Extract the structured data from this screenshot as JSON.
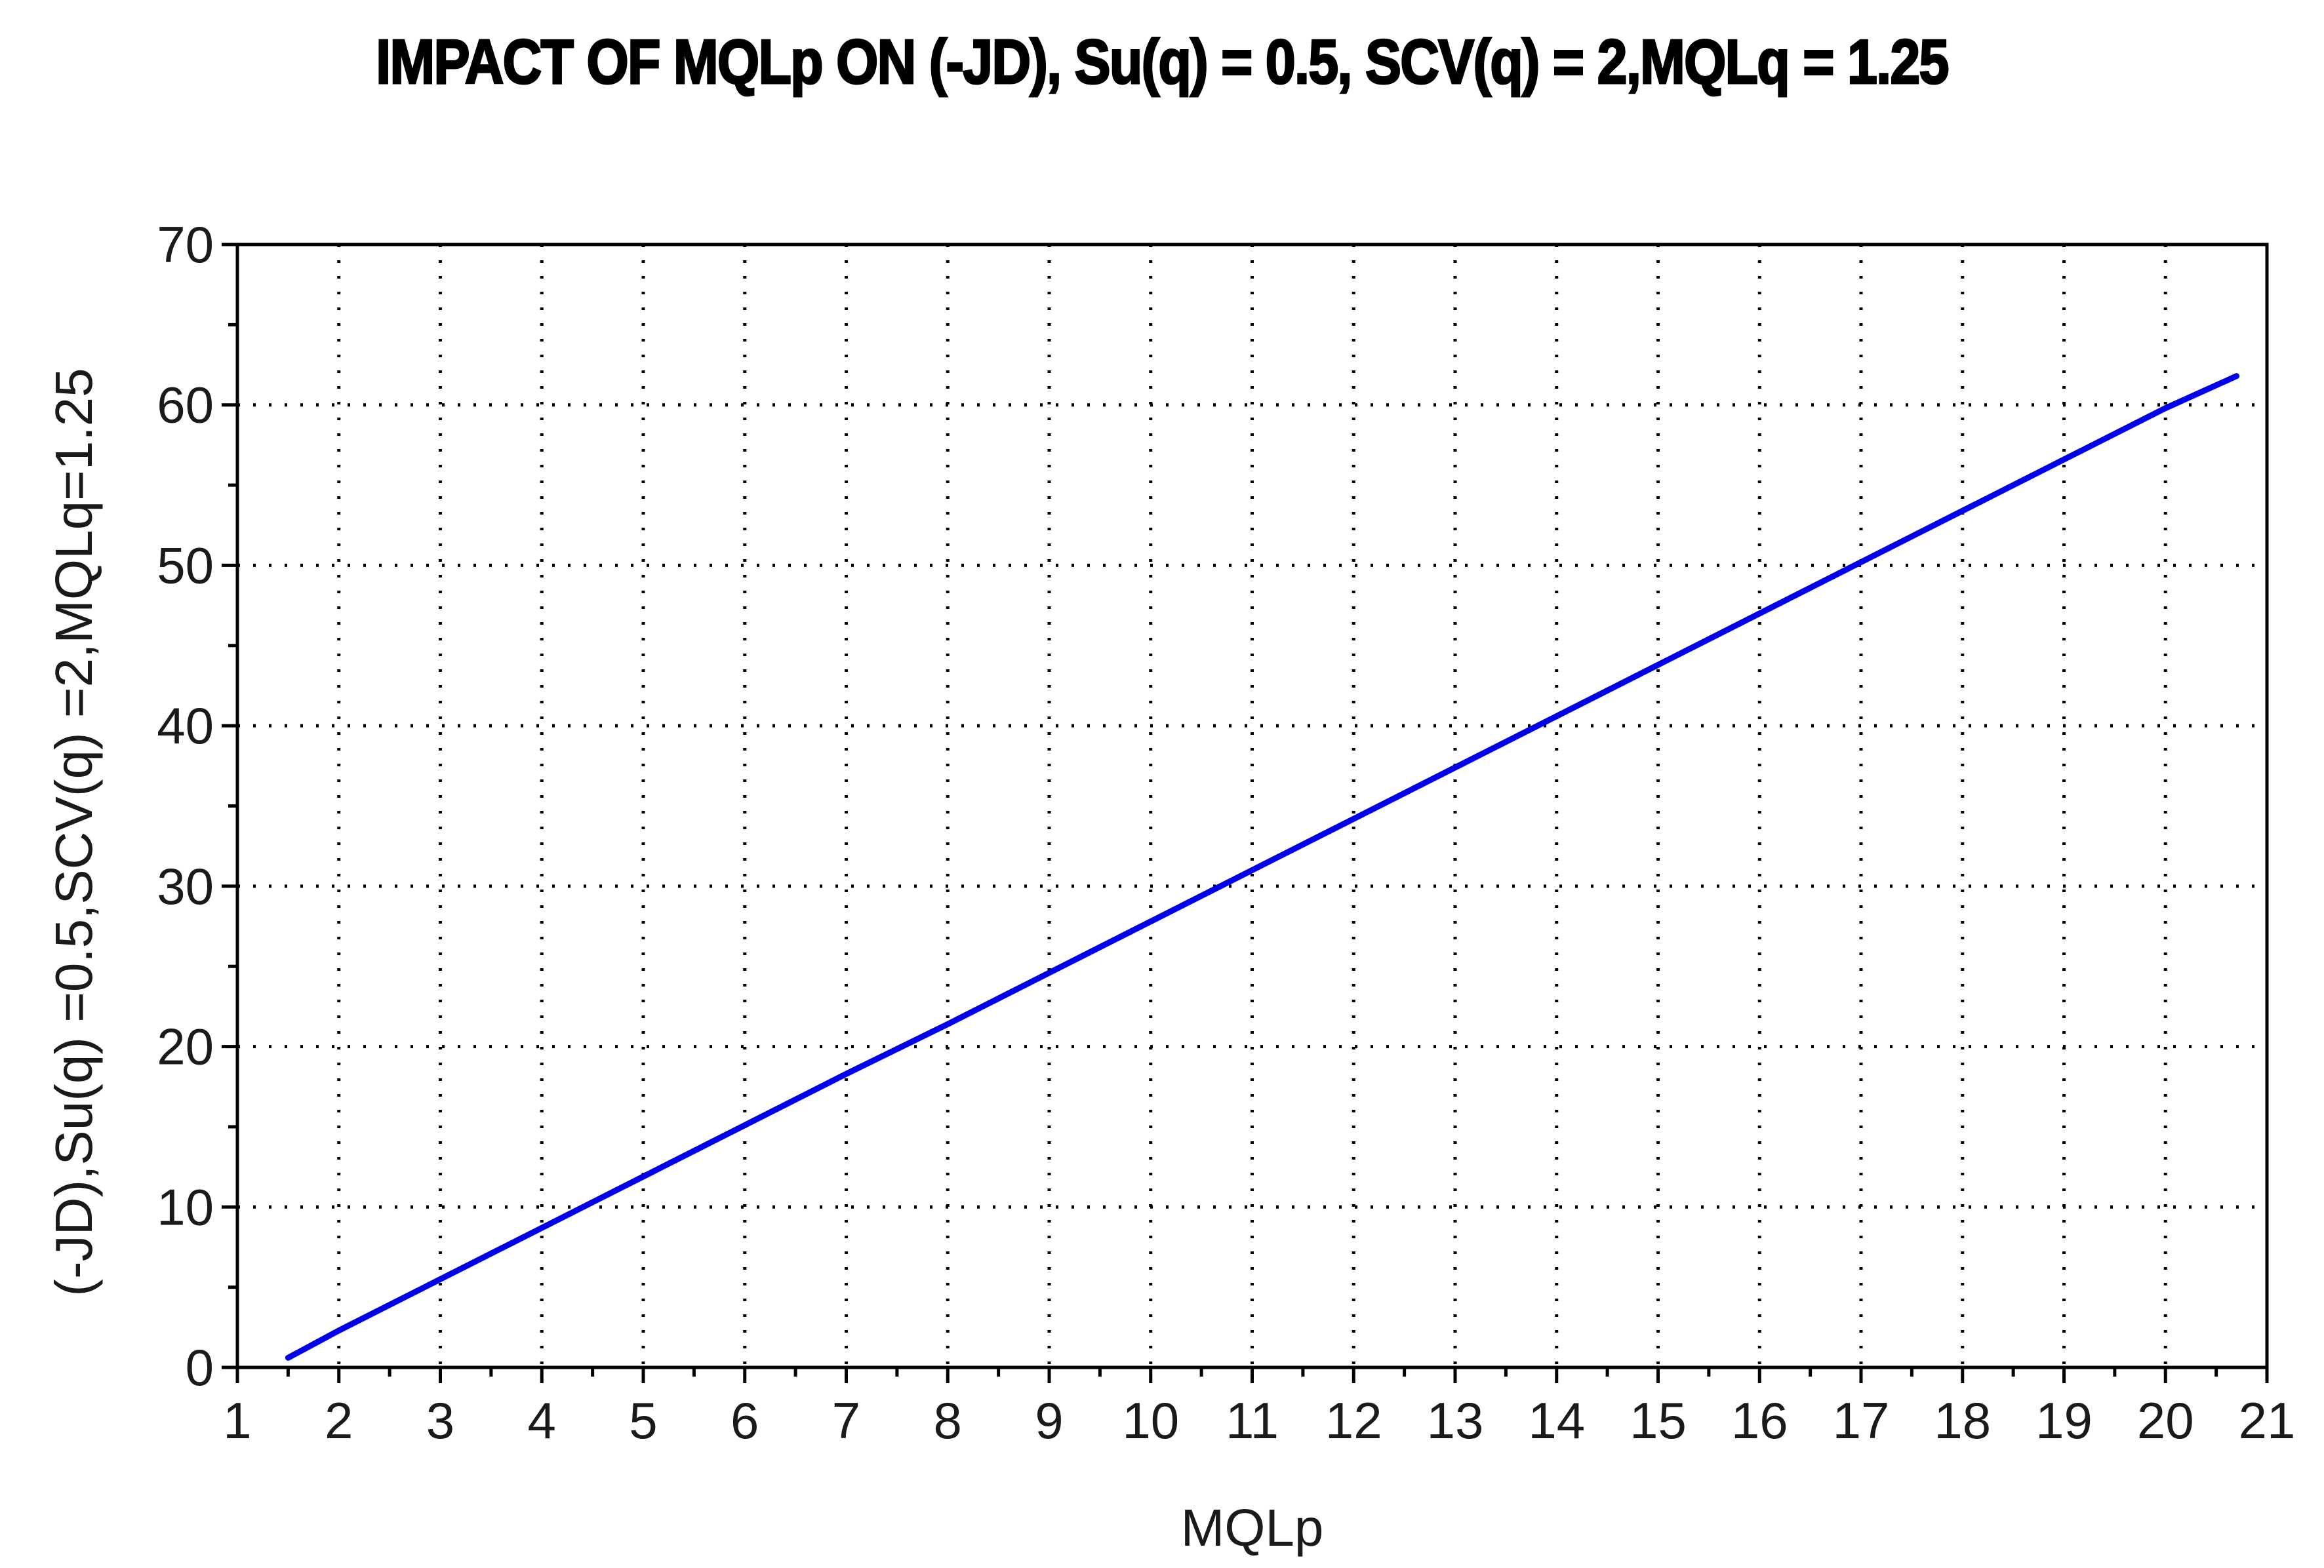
{
  "chart_data": {
    "type": "line",
    "title": "IMPACT OF MQLp ON (-JD), Su(q) = 0.5, SCV(q) = 2,MQLq = 1.25",
    "xlabel": "MQLp",
    "ylabel": "(-JD),Su(q) =0.5,SCV(q) =2,MQLq=1.25",
    "xlim": [
      1,
      21
    ],
    "ylim": [
      0,
      70
    ],
    "x_ticks": [
      "1",
      "2",
      "3",
      "4",
      "5",
      "6",
      "7",
      "8",
      "9",
      "10",
      "11",
      "12",
      "13",
      "14",
      "15",
      "16",
      "17",
      "18",
      "19",
      "20",
      "21"
    ],
    "y_ticks": [
      "0",
      "10",
      "20",
      "30",
      "40",
      "50",
      "60",
      "70"
    ],
    "grid": true,
    "grid_style": "dotted",
    "series_color": "#0000ee",
    "series": [
      {
        "x": [
          1.5,
          2,
          3,
          4,
          5,
          6,
          7,
          8,
          9,
          10,
          11,
          12,
          13,
          14,
          15,
          16,
          17,
          18,
          19,
          20,
          20.7
        ],
        "y": [
          0.6,
          2.3,
          5.5,
          8.7,
          11.9,
          15.1,
          18.3,
          21.4,
          24.6,
          27.8,
          31.0,
          34.2,
          37.4,
          40.6,
          43.8,
          47.0,
          50.2,
          53.4,
          56.6,
          59.8,
          61.8
        ]
      }
    ]
  }
}
